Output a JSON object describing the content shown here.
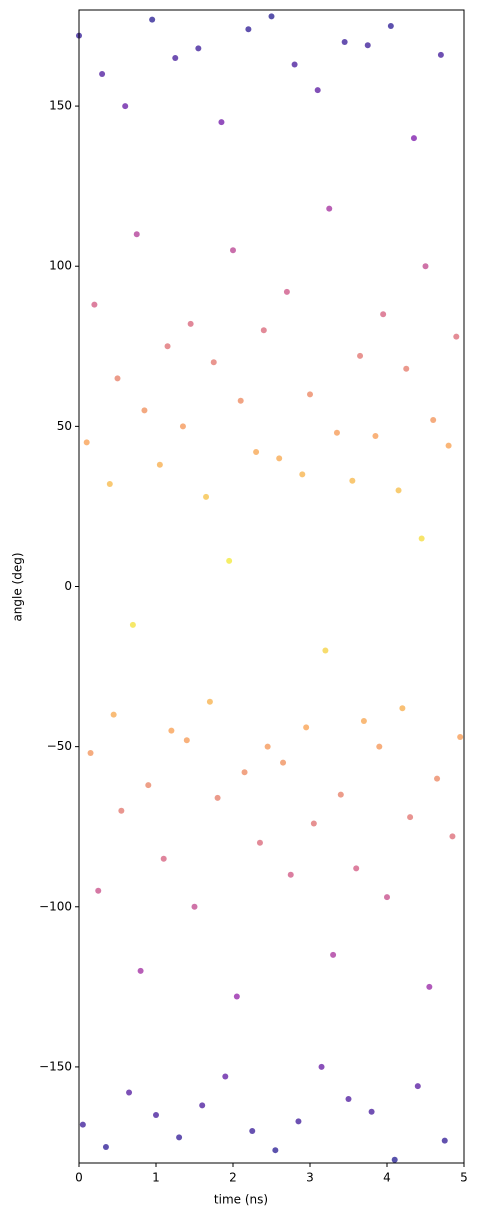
{
  "chart_data": {
    "type": "scatter",
    "xlabel": "time (ns)",
    "ylabel": "angle (deg)",
    "colormap": "plasma",
    "xlim": [
      0,
      5
    ],
    "xticks": [
      0,
      1,
      2,
      3,
      4,
      5
    ],
    "ylim": [
      -180,
      180
    ],
    "yticks": [
      {
        "value": -150,
        "label": "−150"
      },
      {
        "value": -100,
        "label": "−100"
      },
      {
        "value": -50,
        "label": "−50"
      },
      0,
      50,
      100,
      150
    ],
    "x": [
      0,
      0.05,
      0.1,
      0.15,
      0.2,
      0.25,
      0.3,
      0.35,
      0.4,
      0.45,
      0.5,
      0.55,
      0.6,
      0.65,
      0.7,
      0.75,
      0.8,
      0.85,
      0.9,
      0.95,
      1,
      1.05,
      1.1,
      1.15,
      1.2,
      1.25,
      1.3,
      1.35,
      1.4,
      1.45,
      1.5,
      1.55,
      1.6,
      1.65,
      1.7,
      1.75,
      1.8,
      1.85,
      1.9,
      1.95,
      2,
      2.05,
      2.1,
      2.15,
      2.2,
      2.25,
      2.3,
      2.35,
      2.4,
      2.45,
      2.5,
      2.55,
      2.6,
      2.65,
      2.7,
      2.75,
      2.8,
      2.85,
      2.9,
      2.95,
      3,
      3.05,
      3.1,
      3.15,
      3.2,
      3.25,
      3.3,
      3.35,
      3.4,
      3.45,
      3.5,
      3.55,
      3.6,
      3.65,
      3.7,
      3.75,
      3.8,
      3.85,
      3.9,
      3.95,
      4,
      4.05,
      4.1,
      4.15,
      4.2,
      4.25,
      4.3,
      4.35,
      4.4,
      4.45,
      4.5,
      4.55,
      4.6,
      4.65,
      4.7,
      4.75,
      4.8,
      4.85,
      4.9,
      4.95
    ],
    "y": [
      172,
      -168,
      45,
      -52,
      88,
      -95,
      160,
      -175,
      32,
      -40,
      65,
      -70,
      150,
      -158,
      -12,
      110,
      -120,
      55,
      -62,
      177,
      -165,
      38,
      -85,
      75,
      -45,
      165,
      -172,
      50,
      -48,
      82,
      -100,
      168,
      -162,
      28,
      -36,
      70,
      -66,
      145,
      -153,
      8,
      105,
      -128,
      58,
      -58,
      174,
      -170,
      42,
      -80,
      80,
      -50,
      178,
      -176,
      40,
      -55,
      92,
      -90,
      163,
      -167,
      35,
      -44,
      60,
      -74,
      155,
      -150,
      -20,
      118,
      -115,
      48,
      -65,
      170,
      -160,
      33,
      -88,
      72,
      -42,
      169,
      -164,
      47,
      -50,
      85,
      -97,
      175,
      -179,
      30,
      -38,
      68,
      -72,
      140,
      -156,
      15,
      100,
      -125,
      52,
      -60,
      166,
      -173,
      44,
      -78,
      78,
      -47
    ]
  }
}
